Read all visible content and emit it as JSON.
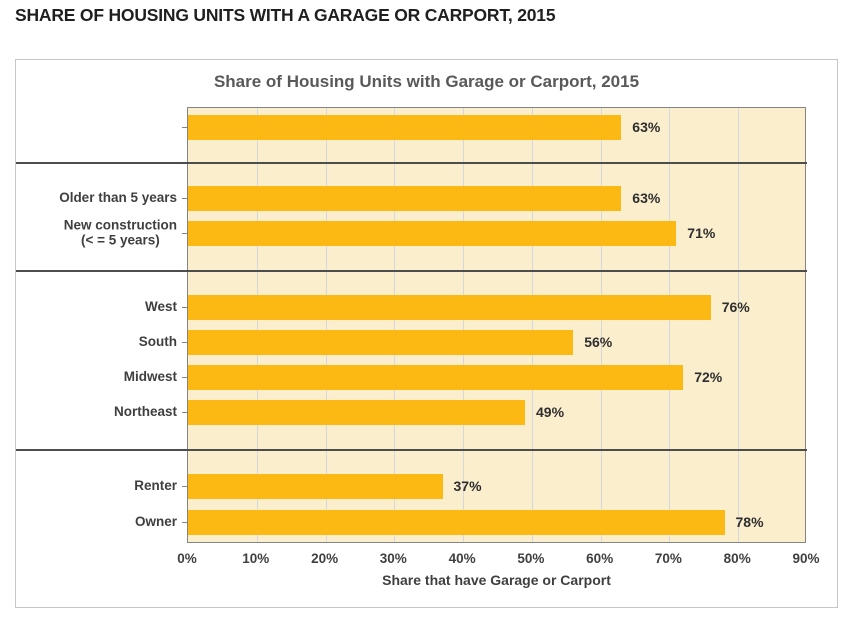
{
  "page_heading": "SHARE OF HOUSING UNITS WITH A GARAGE OR CARPORT, 2015",
  "chart_data": {
    "type": "bar",
    "orientation": "horizontal",
    "title": "Share of Housing Units with Garage or Carport, 2015",
    "xlabel": "Share that have Garage or Carport",
    "xlim": [
      0,
      90
    ],
    "x_tick_labels": [
      "0%",
      "10%",
      "20%",
      "30%",
      "40%",
      "50%",
      "60%",
      "70%",
      "80%",
      "90%"
    ],
    "grid": "vertical",
    "legend": "none",
    "groups": [
      {
        "rows": [
          {
            "category": "",
            "value": 63,
            "label": "63%"
          }
        ]
      },
      {
        "rows": [
          {
            "category": "Older than 5 years",
            "value": 63,
            "label": "63%"
          },
          {
            "category": "New construction\n(< = 5 years)",
            "value": 71,
            "label": "71%"
          }
        ]
      },
      {
        "rows": [
          {
            "category": "West",
            "value": 76,
            "label": "76%"
          },
          {
            "category": "South",
            "value": 56,
            "label": "56%"
          },
          {
            "category": "Midwest",
            "value": 72,
            "label": "72%"
          },
          {
            "category": "Northeast",
            "value": 49,
            "label": "49%"
          }
        ]
      },
      {
        "rows": [
          {
            "category": "Renter",
            "value": 37,
            "label": "37%"
          },
          {
            "category": "Owner",
            "value": 78,
            "label": "78%"
          }
        ]
      }
    ],
    "colors": {
      "bar": "#FCB813",
      "plot_background": "#FAEECD",
      "gridline": "#D4D8DD",
      "group_divider": "#4D4D4D",
      "plot_border": "#848484",
      "title_text": "#595959",
      "label_text": "#3F3F3F"
    }
  }
}
